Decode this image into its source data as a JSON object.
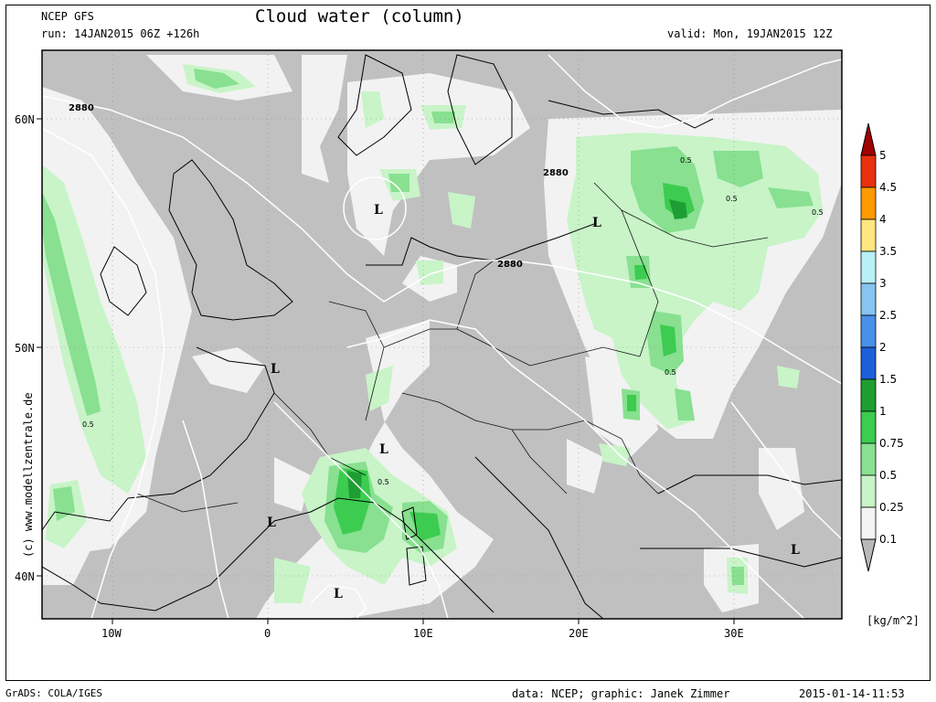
{
  "header": {
    "model": "NCEP GFS",
    "run": "run: 14JAN2015 06Z +126h",
    "title": "Cloud water (column)",
    "valid": "valid: Mon, 19JAN2015 12Z"
  },
  "footer": {
    "left": "GrADS: COLA/IGES",
    "middle": "data: NCEP; graphic: Janek Zimmer",
    "right": "2015-01-14-11:53"
  },
  "watermark": "(c) www.modellzentrale.de",
  "axes": {
    "lat_labels": [
      "60N",
      "50N",
      "40N"
    ],
    "lon_labels": [
      "10W",
      "0",
      "10E",
      "20E",
      "30E"
    ]
  },
  "colorbar": {
    "unit": "[kg/m^2]",
    "levels": [
      {
        "label": "5",
        "color": "#a00000"
      },
      {
        "label": "4.5",
        "color": "#e83010"
      },
      {
        "label": "4",
        "color": "#ff9a00"
      },
      {
        "label": "3.5",
        "color": "#ffe680"
      },
      {
        "label": "3",
        "color": "#b8f0f8"
      },
      {
        "label": "2.5",
        "color": "#88c4f0"
      },
      {
        "label": "2",
        "color": "#4a90e8"
      },
      {
        "label": "1.5",
        "color": "#1e5ed8"
      },
      {
        "label": "1",
        "color": "#1e9e32"
      },
      {
        "label": "0.75",
        "color": "#3ccc50"
      },
      {
        "label": "0.5",
        "color": "#88e090"
      },
      {
        "label": "0.25",
        "color": "#c8f4c8"
      },
      {
        "label": "0.1",
        "color": "#f4f4f4"
      }
    ],
    "below_color": "#b8b8b8"
  },
  "map_labels": {
    "contour_values": [
      "2880",
      "2880",
      "2880"
    ],
    "cloud_values": [
      "0.5",
      "0.5",
      "0.5",
      "0.5",
      "0.5",
      "0.5"
    ],
    "lows": [
      "L",
      "L",
      "L",
      "L",
      "L",
      "L",
      "L"
    ]
  },
  "colors": {
    "land_gray": "#c0c0c0",
    "low_cloud": "#f2f2f2",
    "light_green": "#c8f4c8",
    "mid_green": "#88e090",
    "green": "#3ccc50",
    "dark_green": "#1e9e32"
  }
}
